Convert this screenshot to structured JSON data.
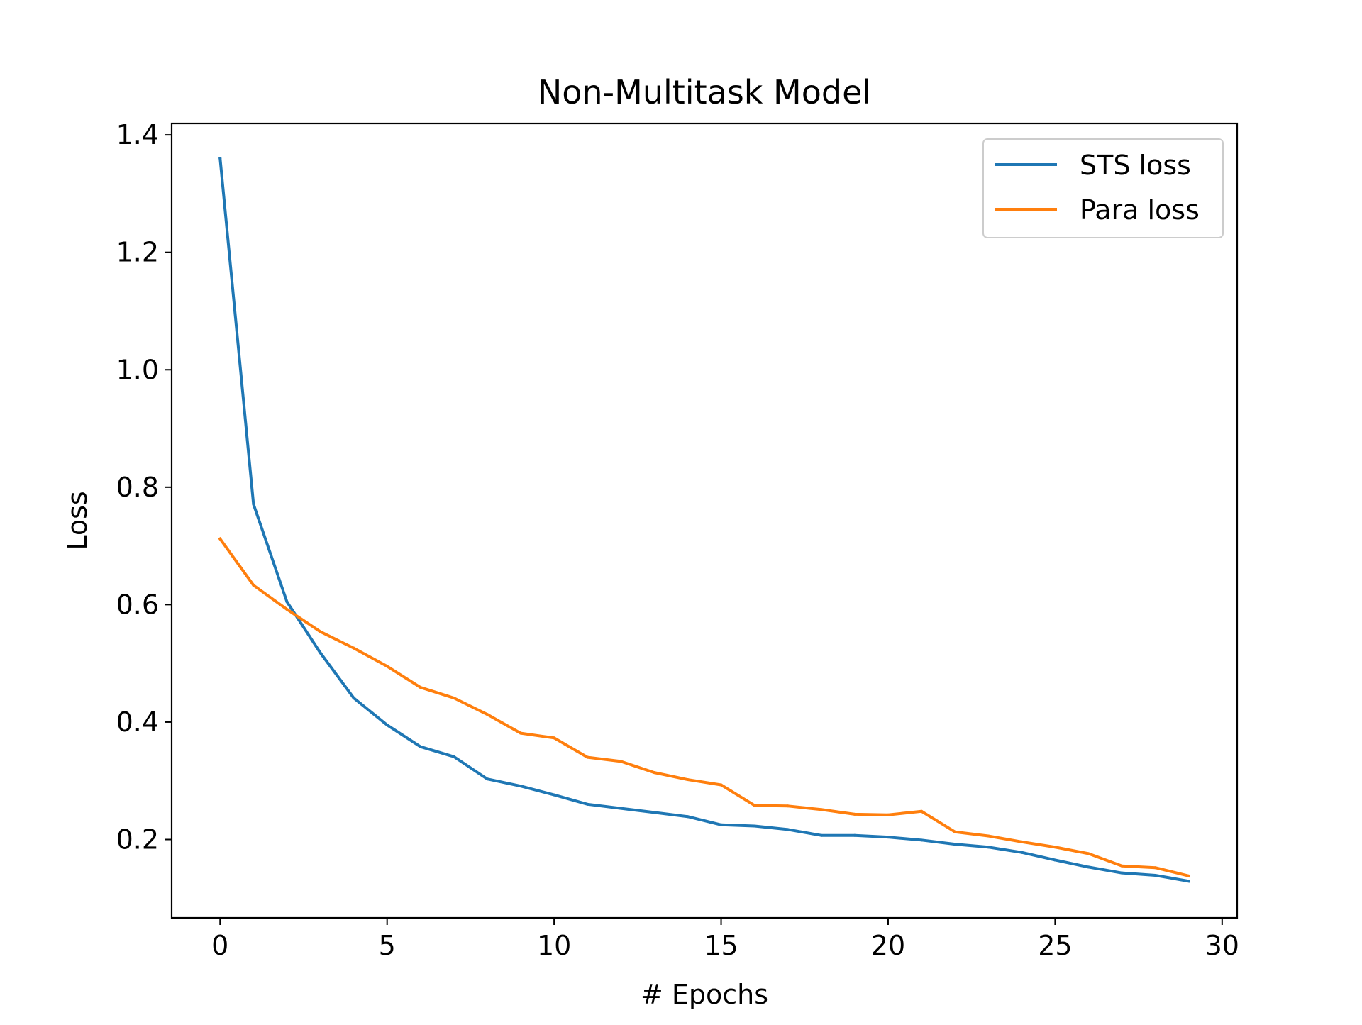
{
  "chart_data": {
    "type": "line",
    "title": "Non-Multitask Model",
    "xlabel": "# Epochs",
    "ylabel": "Loss",
    "xlim": [
      -1.45,
      30.45
    ],
    "ylim": [
      0.0665,
      1.4195
    ],
    "xticks": [
      0,
      5,
      10,
      15,
      20,
      25,
      30
    ],
    "xtick_labels": [
      "0",
      "5",
      "10",
      "15",
      "20",
      "25",
      "30"
    ],
    "yticks": [
      0.2,
      0.4,
      0.6,
      0.8,
      1.0,
      1.2,
      1.4
    ],
    "ytick_labels": [
      "0.2",
      "0.4",
      "0.6",
      "0.8",
      "1.0",
      "1.2",
      "1.4"
    ],
    "grid": false,
    "legend_position": "top-right",
    "x": [
      0,
      1,
      2,
      3,
      4,
      5,
      6,
      7,
      8,
      9,
      10,
      11,
      12,
      13,
      14,
      15,
      16,
      17,
      18,
      19,
      20,
      21,
      22,
      23,
      24,
      25,
      26,
      27,
      28,
      29
    ],
    "series": [
      {
        "name": "STS loss",
        "color": "#1f77b4",
        "values": [
          1.36,
          0.771,
          0.605,
          0.518,
          0.441,
          0.395,
          0.358,
          0.341,
          0.303,
          0.291,
          0.276,
          0.26,
          0.253,
          0.246,
          0.239,
          0.225,
          0.223,
          0.217,
          0.207,
          0.207,
          0.204,
          0.199,
          0.192,
          0.187,
          0.178,
          0.165,
          0.153,
          0.143,
          0.139,
          0.129
        ]
      },
      {
        "name": "Para loss",
        "color": "#ff7f0e",
        "values": [
          0.712,
          0.633,
          0.592,
          0.554,
          0.526,
          0.495,
          0.459,
          0.441,
          0.413,
          0.381,
          0.373,
          0.34,
          0.333,
          0.314,
          0.302,
          0.293,
          0.258,
          0.257,
          0.251,
          0.243,
          0.242,
          0.248,
          0.213,
          0.206,
          0.196,
          0.187,
          0.176,
          0.155,
          0.152,
          0.138
        ]
      }
    ]
  }
}
